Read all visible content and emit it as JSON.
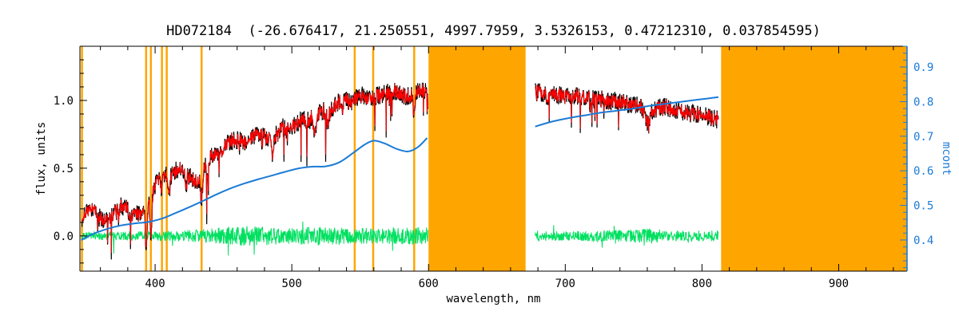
{
  "chart_data": {
    "type": "line",
    "title": "HD072184  (-26.676417, 21.250551, 4997.7959, 3.5326153, 0.47212310, 0.037854595)",
    "star_id": "HD072184",
    "title_parameters": [
      -26.676417,
      21.250551,
      4997.7959,
      3.5326153,
      0.4721231,
      0.037854595
    ],
    "xlabel": "wavelength, nm",
    "ylabel_left": "flux, units",
    "ylabel_right": "mcont",
    "x_range": [
      345,
      950
    ],
    "x_ticks": [
      400,
      500,
      600,
      700,
      800,
      900
    ],
    "x_minor_step": 20,
    "y_left_range": [
      -0.26,
      1.4
    ],
    "y_left_ticks": [
      0.0,
      0.5,
      1.0
    ],
    "y_left_minor_step": 0.1,
    "y_right_range": [
      0.31,
      0.96
    ],
    "y_right_ticks": [
      0.4,
      0.5,
      0.6,
      0.7,
      0.8,
      0.9
    ],
    "y_right_minor_step": 0.02,
    "grid": false,
    "legend": "none",
    "colors": {
      "band": "#FFA500",
      "observed": "#000000",
      "fit": "#FF0000",
      "residual": "#00E060",
      "continuum": "#1B7BD6",
      "frame": "#000000"
    },
    "series": [
      {
        "name": "observed spectrum",
        "color_key": "observed",
        "axis": "left"
      },
      {
        "name": "fitted spectrum",
        "color_key": "fit",
        "axis": "left"
      },
      {
        "name": "residual",
        "color_key": "residual",
        "axis": "left",
        "baseline": 0.0
      },
      {
        "name": "continuum mcont",
        "color_key": "continuum",
        "axis": "right"
      }
    ],
    "masked_bands_nm": [
      [
        600,
        671
      ],
      [
        814,
        950
      ]
    ],
    "masked_lines_nm": [
      346.5,
      393.4,
      396.9,
      405.0,
      408.5,
      434.0,
      546.0,
      559.5,
      589.5
    ],
    "segments_nm": [
      [
        346.5,
        599.5
      ],
      [
        678,
        812
      ]
    ],
    "spectrum_mid_flux": [
      [
        345,
        0.12
      ],
      [
        350,
        0.17
      ],
      [
        355,
        0.21
      ],
      [
        360,
        0.13
      ],
      [
        365,
        0.1
      ],
      [
        370,
        0.16
      ],
      [
        375,
        0.22
      ],
      [
        380,
        0.19
      ],
      [
        385,
        0.16
      ],
      [
        390,
        0.17
      ],
      [
        394,
        0.24
      ],
      [
        398,
        0.33
      ],
      [
        402,
        0.42
      ],
      [
        406,
        0.46
      ],
      [
        410,
        0.44
      ],
      [
        414,
        0.47
      ],
      [
        418,
        0.5
      ],
      [
        423,
        0.46
      ],
      [
        428,
        0.41
      ],
      [
        433,
        0.42
      ],
      [
        437,
        0.53
      ],
      [
        442,
        0.6
      ],
      [
        447,
        0.59
      ],
      [
        452,
        0.67
      ],
      [
        457,
        0.71
      ],
      [
        462,
        0.71
      ],
      [
        467,
        0.69
      ],
      [
        472,
        0.74
      ],
      [
        477,
        0.76
      ],
      [
        482,
        0.72
      ],
      [
        487,
        0.73
      ],
      [
        492,
        0.8
      ],
      [
        497,
        0.82
      ],
      [
        502,
        0.81
      ],
      [
        507,
        0.86
      ],
      [
        512,
        0.85
      ],
      [
        517,
        0.88
      ],
      [
        522,
        0.93
      ],
      [
        527,
        0.9
      ],
      [
        532,
        0.98
      ],
      [
        538,
        1.0
      ],
      [
        544,
        0.99
      ],
      [
        550,
        1.04
      ],
      [
        556,
        1.01
      ],
      [
        562,
        1.03
      ],
      [
        568,
        1.05
      ],
      [
        574,
        1.07
      ],
      [
        580,
        1.04
      ],
      [
        586,
        1.03
      ],
      [
        592,
        1.06
      ],
      [
        599,
        1.07
      ],
      [
        640,
        1.07
      ],
      [
        678,
        1.06
      ],
      [
        690,
        1.05
      ],
      [
        700,
        1.03
      ],
      [
        710,
        1.03
      ],
      [
        720,
        1.01
      ],
      [
        730,
        1.0
      ],
      [
        740,
        0.99
      ],
      [
        750,
        0.97
      ],
      [
        758,
        0.94
      ],
      [
        764,
        0.93
      ],
      [
        772,
        0.95
      ],
      [
        780,
        0.93
      ],
      [
        790,
        0.91
      ],
      [
        800,
        0.89
      ],
      [
        812,
        0.86
      ]
    ],
    "absorption_lines": [
      [
        358.1,
        0.08,
        0.8
      ],
      [
        373.5,
        0.08,
        0.8
      ],
      [
        382.0,
        0.1,
        0.8
      ],
      [
        393.4,
        0.3,
        1.0
      ],
      [
        396.9,
        0.28,
        1.0
      ],
      [
        404.6,
        0.1,
        0.7
      ],
      [
        410.2,
        0.14,
        0.8
      ],
      [
        422.7,
        0.12,
        0.8
      ],
      [
        434.0,
        0.18,
        0.9
      ],
      [
        438.4,
        0.1,
        0.8
      ],
      [
        486.1,
        0.14,
        0.9
      ],
      [
        495.8,
        0.06,
        0.8
      ],
      [
        516.9,
        0.13,
        1.3
      ],
      [
        526.2,
        0.08,
        0.8
      ],
      [
        537.1,
        0.07,
        0.8
      ],
      [
        589.2,
        0.12,
        0.9
      ],
      [
        686.9,
        0.06,
        0.9
      ],
      [
        718.5,
        0.05,
        0.9
      ],
      [
        760.5,
        0.12,
        2.2
      ]
    ],
    "residual_amp": [
      [
        345,
        0.03
      ],
      [
        400,
        0.035
      ],
      [
        430,
        0.045
      ],
      [
        450,
        0.065
      ],
      [
        470,
        0.075
      ],
      [
        495,
        0.058
      ],
      [
        520,
        0.068
      ],
      [
        545,
        0.058
      ],
      [
        570,
        0.062
      ],
      [
        599,
        0.068
      ],
      [
        678,
        0.04
      ],
      [
        700,
        0.034
      ],
      [
        720,
        0.04
      ],
      [
        740,
        0.046
      ],
      [
        760,
        0.055
      ],
      [
        780,
        0.04
      ],
      [
        812,
        0.042
      ]
    ],
    "continuum_mcont": {
      "seg1": [
        [
          346,
          0.4
        ],
        [
          355,
          0.418
        ],
        [
          365,
          0.432
        ],
        [
          375,
          0.442
        ],
        [
          385,
          0.448
        ],
        [
          395,
          0.452
        ],
        [
          405,
          0.462
        ],
        [
          415,
          0.478
        ],
        [
          425,
          0.495
        ],
        [
          435,
          0.513
        ],
        [
          445,
          0.532
        ],
        [
          455,
          0.549
        ],
        [
          465,
          0.563
        ],
        [
          475,
          0.575
        ],
        [
          485,
          0.586
        ],
        [
          495,
          0.597
        ],
        [
          505,
          0.607
        ],
        [
          515,
          0.612
        ],
        [
          525,
          0.613
        ],
        [
          535,
          0.625
        ],
        [
          545,
          0.652
        ],
        [
          553,
          0.675
        ],
        [
          560,
          0.687
        ],
        [
          568,
          0.679
        ],
        [
          577,
          0.663
        ],
        [
          585,
          0.656
        ],
        [
          592,
          0.668
        ],
        [
          599,
          0.695
        ]
      ],
      "seg2": [
        [
          678,
          0.728
        ],
        [
          690,
          0.742
        ],
        [
          702,
          0.752
        ],
        [
          714,
          0.76
        ],
        [
          726,
          0.768
        ],
        [
          738,
          0.774
        ],
        [
          750,
          0.78
        ],
        [
          762,
          0.788
        ],
        [
          774,
          0.794
        ],
        [
          786,
          0.8
        ],
        [
          798,
          0.806
        ],
        [
          812,
          0.813
        ]
      ]
    },
    "noise": {
      "seed": 7,
      "step_nm": 0.25,
      "obs_amp": 0.07,
      "fit_amp": 0.05,
      "spike_prob": 0.015,
      "spike_max": 0.3,
      "green_spike_prob": 0.012,
      "green_spike_max": 0.11
    }
  }
}
